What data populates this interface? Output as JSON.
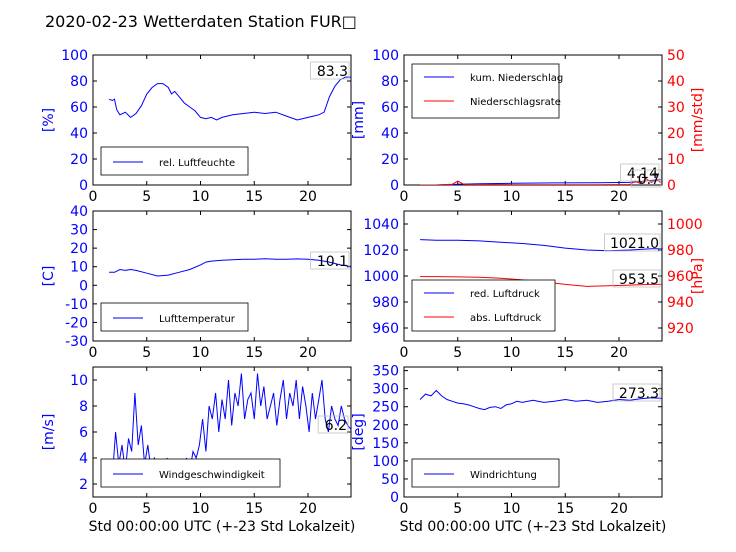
{
  "title": "2020-02-23 Wetterdaten Station FUR□",
  "colors": {
    "primary": "#0000ff",
    "secondary": "#ff0000",
    "light": "#8080ff"
  },
  "chart_data": [
    {
      "id": "humidity",
      "type": "line",
      "xlim": [
        0,
        24
      ],
      "ylim": [
        0,
        100
      ],
      "xticks": [
        0,
        5,
        10,
        15,
        20
      ],
      "yticks": [
        0,
        20,
        40,
        60,
        80,
        100
      ],
      "ylabel": "[%]",
      "xlabel": "",
      "grid": false,
      "legend_position": "lower-left",
      "annotation": "83.3",
      "series": [
        {
          "name": "rel. Luftfeuchte",
          "axis": "left",
          "color": "#0000ff",
          "x": [
            1.5,
            1.8,
            2.0,
            2.2,
            2.5,
            3.0,
            3.5,
            4.0,
            4.5,
            5.0,
            5.5,
            6.0,
            6.5,
            7.0,
            7.3,
            7.6,
            8.0,
            8.5,
            9.0,
            9.5,
            10.0,
            10.5,
            11.0,
            11.5,
            12.0,
            13.0,
            14.0,
            15.0,
            16.0,
            17.0,
            18.0,
            19.0,
            20.0,
            20.5,
            21.0,
            21.5,
            22.0,
            22.5,
            23.0,
            23.5,
            24.0
          ],
          "y": [
            66,
            65,
            66,
            58,
            54,
            56,
            52,
            55,
            61,
            70,
            75,
            78,
            78,
            75,
            70,
            72,
            68,
            63,
            60,
            57,
            52,
            51,
            52,
            50,
            52,
            54,
            55,
            56,
            55,
            56,
            53,
            50,
            52,
            53,
            54,
            56,
            68,
            76,
            81,
            83,
            83
          ]
        }
      ]
    },
    {
      "id": "precipitation",
      "type": "line",
      "xlim": [
        0,
        24
      ],
      "ylim": [
        0,
        100
      ],
      "ylim_right": [
        0,
        50
      ],
      "xticks": [
        0,
        5,
        10,
        15,
        20
      ],
      "yticks": [
        0,
        20,
        40,
        60,
        80,
        100
      ],
      "yticks_right": [
        0,
        10,
        20,
        30,
        40,
        50
      ],
      "ylabel": "[mm]",
      "ylabel_right": "[mm/std]",
      "xlabel": "",
      "grid": false,
      "legend_position": "upper-left",
      "annotations": [
        "4.14",
        "0.7"
      ],
      "series": [
        {
          "name": "kum. Niederschlag",
          "axis": "left",
          "color": "#0000ff",
          "x": [
            1.5,
            3.0,
            5.0,
            7.0,
            10.0,
            14.0,
            18.0,
            21.0,
            22.0,
            23.0,
            24.0
          ],
          "y": [
            0,
            0,
            0.5,
            1.0,
            1.3,
            1.6,
            1.8,
            2.0,
            2.6,
            3.5,
            4.14
          ]
        },
        {
          "name": "Niederschlagsrate",
          "axis": "right",
          "color": "#ff0000",
          "x": [
            1.5,
            3.0,
            4.5,
            5.0,
            5.5,
            6.0,
            8.0,
            10.0,
            14.0,
            18.0,
            21.0,
            21.5,
            22.0,
            22.5,
            23.0,
            23.5,
            24.0
          ],
          "y": [
            0,
            0,
            0.3,
            1.5,
            0.4,
            0.1,
            0.2,
            0.1,
            0.1,
            0.1,
            0.2,
            1.5,
            0.5,
            2.5,
            1.0,
            2.0,
            0.7
          ]
        }
      ]
    },
    {
      "id": "temperature",
      "type": "line",
      "xlim": [
        0,
        24
      ],
      "ylim": [
        -30,
        40
      ],
      "xticks": [
        0,
        5,
        10,
        15,
        20
      ],
      "yticks": [
        -30,
        -20,
        -10,
        0,
        10,
        20,
        30,
        40
      ],
      "ylabel": "[C]",
      "xlabel": "",
      "grid": false,
      "legend_position": "lower-left",
      "annotation": "10.1",
      "series": [
        {
          "name": "Lufttemperatur",
          "axis": "left",
          "color": "#0000ff",
          "x": [
            1.5,
            2.0,
            2.5,
            3.0,
            3.5,
            4.0,
            5.0,
            6.0,
            7.0,
            8.0,
            9.0,
            10.0,
            10.5,
            11.0,
            12.0,
            13.0,
            14.0,
            15.0,
            16.0,
            17.0,
            18.0,
            19.0,
            20.0,
            21.0,
            22.0,
            23.0,
            24.0
          ],
          "y": [
            7,
            7,
            8.5,
            8,
            8.5,
            8,
            6.5,
            5,
            5.5,
            7,
            8.5,
            11,
            12.5,
            13,
            13.5,
            13.8,
            14,
            14,
            14.3,
            14,
            14,
            14.2,
            14,
            13.5,
            12.5,
            11,
            10.1
          ]
        }
      ]
    },
    {
      "id": "pressure",
      "type": "line",
      "xlim": [
        0,
        24
      ],
      "ylim": [
        950,
        1050
      ],
      "ylim_right": [
        910,
        1010
      ],
      "xticks": [
        0,
        5,
        10,
        15,
        20
      ],
      "yticks": [
        960,
        980,
        1000,
        1020,
        1040
      ],
      "yticks_right": [
        920,
        940,
        960,
        980,
        1000
      ],
      "ylabel": "",
      "ylabel_right": "[hPa]",
      "xlabel": "",
      "grid": false,
      "legend_position": "lower-left",
      "annotations": [
        "1021.0",
        "953.5"
      ],
      "series": [
        {
          "name": "red. Luftdruck",
          "axis": "left",
          "color": "#0000ff",
          "x": [
            1.5,
            3.0,
            5.0,
            7.0,
            9.0,
            11.0,
            13.0,
            15.0,
            17.0,
            19.0,
            21.0,
            22.0,
            23.0,
            24.0
          ],
          "y": [
            1028,
            1027.5,
            1027.5,
            1027,
            1026,
            1025,
            1023.5,
            1021.5,
            1020,
            1019.5,
            1020,
            1020.5,
            1021,
            1021
          ]
        },
        {
          "name": "abs. Luftdruck",
          "axis": "right",
          "color": "#ff0000",
          "x": [
            1.5,
            3.0,
            5.0,
            7.0,
            9.0,
            11.0,
            13.0,
            15.0,
            17.0,
            19.0,
            21.0,
            22.0,
            23.0,
            24.0
          ],
          "y": [
            959.5,
            959.5,
            959.3,
            959,
            958.3,
            957,
            955.5,
            953.5,
            952,
            952.5,
            953,
            953.3,
            953.5,
            953.5
          ]
        }
      ]
    },
    {
      "id": "windspeed",
      "type": "line",
      "xlim": [
        0,
        24
      ],
      "ylim": [
        1,
        11
      ],
      "xticks": [
        0,
        5,
        10,
        15,
        20
      ],
      "yticks": [
        2,
        4,
        6,
        8,
        10
      ],
      "ylabel": "[m/s]",
      "xlabel": "Std 00:00:00 UTC (+-23 Std Lokalzeit)",
      "grid": false,
      "legend_position": "lower-left",
      "annotation": "6.2",
      "series": [
        {
          "name": "Windgeschwindigkeit",
          "axis": "left",
          "color": "#0000ff",
          "x": [
            1.5,
            1.8,
            2.1,
            2.4,
            2.7,
            3.0,
            3.3,
            3.6,
            3.9,
            4.2,
            4.5,
            4.8,
            5.1,
            5.4,
            5.7,
            6.0,
            6.3,
            6.6,
            6.9,
            7.2,
            7.5,
            7.8,
            8.1,
            8.4,
            8.7,
            9.0,
            9.3,
            9.6,
            9.9,
            10.2,
            10.5,
            10.8,
            11.1,
            11.4,
            11.7,
            12.0,
            12.3,
            12.6,
            12.9,
            13.2,
            13.5,
            13.8,
            14.1,
            14.4,
            14.7,
            15.0,
            15.3,
            15.6,
            15.9,
            16.2,
            16.5,
            16.8,
            17.1,
            17.4,
            17.7,
            18.0,
            18.3,
            18.6,
            18.9,
            19.2,
            19.5,
            19.8,
            20.1,
            20.4,
            20.7,
            21.0,
            21.3,
            21.6,
            21.9,
            22.2,
            22.5,
            22.8,
            23.1,
            23.4,
            23.7,
            24.0
          ],
          "y": [
            3,
            2.5,
            6,
            3.5,
            5,
            3,
            5.5,
            4.5,
            9,
            5,
            6.5,
            3.5,
            5,
            3,
            4,
            3.5,
            3,
            2.5,
            4,
            3,
            3.5,
            2,
            3,
            2.5,
            4,
            3,
            4.5,
            4,
            5,
            7,
            4.5,
            8,
            7,
            9,
            6,
            8.5,
            7,
            10,
            6.5,
            9,
            8,
            10.5,
            7,
            8.5,
            9,
            7,
            10.5,
            8,
            9.5,
            7,
            8,
            9,
            6.5,
            8.5,
            10,
            7,
            9,
            8,
            10,
            7,
            9.5,
            8,
            6,
            9,
            7,
            8.5,
            10,
            7,
            6,
            8,
            7,
            6.5,
            8,
            7,
            6.5,
            6.2
          ]
        },
        {
          "name": "",
          "axis": "left",
          "color": "#8080ff",
          "x": [
            1.5,
            2.0,
            2.5,
            3.0,
            3.5,
            4.0,
            4.5,
            5.0,
            5.5,
            6.0,
            6.5,
            7.0,
            7.5,
            8.0,
            8.5,
            9.0,
            9.5
          ],
          "y": [
            2.8,
            2.5,
            3,
            2.5,
            3.2,
            2.6,
            3,
            2.8,
            3.2,
            2.5,
            2.4,
            3,
            2.2,
            2.6,
            2.4,
            2.8,
            3
          ]
        }
      ]
    },
    {
      "id": "winddirection",
      "type": "line",
      "xlim": [
        0,
        24
      ],
      "ylim": [
        0,
        360
      ],
      "xticks": [
        0,
        5,
        10,
        15,
        20
      ],
      "yticks": [
        0,
        50,
        100,
        150,
        200,
        250,
        300,
        350
      ],
      "ylabel": "[deg]",
      "xlabel": "Std 00:00:00 UTC (+-23 Std Lokalzeit)",
      "grid": false,
      "legend_position": "lower-left",
      "annotation": "273.3",
      "series": [
        {
          "name": "Windrichtung",
          "axis": "left",
          "color": "#0000ff",
          "x": [
            1.5,
            2.0,
            2.5,
            3.0,
            3.5,
            4.0,
            4.5,
            5.0,
            5.5,
            6.0,
            6.5,
            7.0,
            7.5,
            8.0,
            8.5,
            9.0,
            9.5,
            10.0,
            10.5,
            11.0,
            12.0,
            13.0,
            14.0,
            15.0,
            16.0,
            17.0,
            18.0,
            19.0,
            20.0,
            21.0,
            22.0,
            23.0,
            24.0
          ],
          "y": [
            270,
            285,
            280,
            295,
            280,
            270,
            265,
            260,
            258,
            255,
            250,
            245,
            242,
            248,
            250,
            245,
            255,
            258,
            265,
            262,
            268,
            262,
            265,
            270,
            265,
            268,
            262,
            265,
            270,
            268,
            272,
            275,
            273
          ]
        }
      ]
    }
  ]
}
